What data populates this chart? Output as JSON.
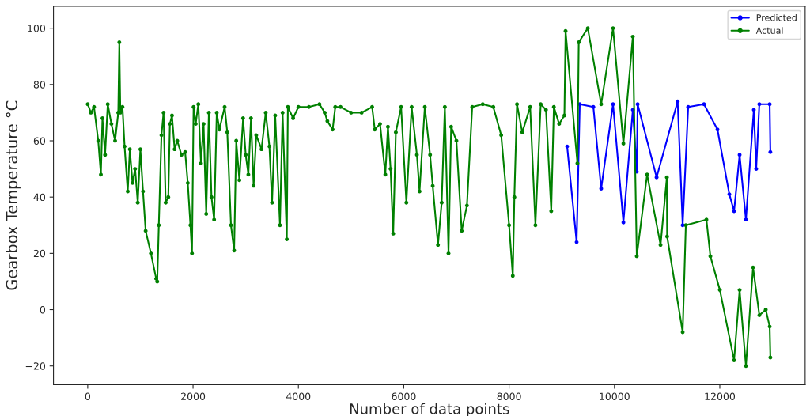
{
  "chart_data": {
    "type": "line",
    "xlabel": "Number of data points",
    "ylabel": "Gearbox Temperature °C",
    "xlim": [
      -650,
      13620
    ],
    "ylim": [
      -26.7,
      107.8
    ],
    "xticks": [
      0,
      2000,
      4000,
      6000,
      8000,
      10000,
      12000
    ],
    "yticks": [
      -20,
      0,
      20,
      40,
      60,
      80,
      100
    ],
    "grid": false,
    "legend": "top right",
    "marker": "circle",
    "line_style": "solid",
    "series": [
      {
        "name": "Predicted",
        "color": "#0000ff",
        "x": [
          9102,
          9282,
          9342,
          9600,
          9748,
          9973,
          10170,
          10349,
          10424,
          10440,
          10800,
          11200,
          11295,
          11400,
          11700,
          11956,
          12181,
          12271,
          12376,
          12496,
          12646,
          12691,
          12750,
          12947,
          12960
        ],
        "values": [
          58,
          24,
          73,
          72,
          43,
          73,
          31,
          71,
          49,
          73,
          47,
          74,
          30,
          72,
          73,
          64,
          41,
          35,
          55,
          32,
          71,
          50,
          73,
          73,
          56
        ]
      },
      {
        "name": "Actual",
        "color": "#008000",
        "x": [
          0,
          60,
          120,
          200,
          250,
          280,
          330,
          380,
          450,
          520,
          580,
          600,
          620,
          660,
          700,
          760,
          800,
          850,
          900,
          950,
          1000,
          1050,
          1100,
          1200,
          1300,
          1320,
          1350,
          1400,
          1440,
          1480,
          1530,
          1560,
          1600,
          1650,
          1700,
          1780,
          1850,
          1900,
          1950,
          1980,
          2010,
          2050,
          2100,
          2150,
          2200,
          2250,
          2300,
          2350,
          2400,
          2450,
          2500,
          2600,
          2650,
          2720,
          2780,
          2820,
          2880,
          2950,
          3000,
          3050,
          3100,
          3150,
          3200,
          3300,
          3380,
          3450,
          3500,
          3560,
          3650,
          3700,
          3780,
          3800,
          3900,
          4000,
          4200,
          4400,
          4500,
          4550,
          4650,
          4700,
          4800,
          5000,
          5200,
          5400,
          5450,
          5550,
          5650,
          5700,
          5750,
          5800,
          5850,
          5950,
          6050,
          6150,
          6250,
          6300,
          6400,
          6500,
          6550,
          6650,
          6720,
          6780,
          6850,
          6900,
          7000,
          7100,
          7200,
          7300,
          7500,
          7700,
          7850,
          8000,
          8070,
          8100,
          8150,
          8250,
          8400,
          8500,
          8600,
          8700,
          8800,
          8850,
          8950,
          9050,
          9072,
          9297,
          9322,
          9494,
          9748,
          9973,
          10170,
          10349,
          10424,
          10620,
          10875,
          10995,
          11000,
          11295,
          11355,
          11746,
          11821,
          12001,
          12271,
          12376,
          12496,
          12631,
          12751,
          12872,
          12947,
          12960
        ],
        "values": [
          73,
          70,
          72,
          60,
          48,
          68,
          55,
          73,
          66,
          60,
          70,
          95,
          70,
          72,
          58,
          42,
          57,
          45,
          50,
          38,
          57,
          42,
          28,
          20,
          11,
          10,
          30,
          62,
          70,
          38,
          40,
          66,
          69,
          57,
          60,
          55,
          56,
          45,
          30,
          20,
          72,
          66,
          73,
          52,
          66,
          34,
          70,
          40,
          32,
          70,
          64,
          72,
          63,
          30,
          21,
          60,
          46,
          68,
          55,
          48,
          68,
          44,
          62,
          57,
          70,
          58,
          38,
          69,
          30,
          70,
          25,
          72,
          68,
          72,
          72,
          73,
          70,
          67,
          64,
          72,
          72,
          70,
          70,
          72,
          64,
          66,
          48,
          65,
          50,
          27,
          63,
          72,
          38,
          72,
          55,
          42,
          72,
          55,
          44,
          23,
          38,
          72,
          20,
          65,
          60,
          28,
          37,
          72,
          73,
          72,
          62,
          30,
          12,
          40,
          73,
          63,
          72,
          30,
          73,
          71,
          35,
          72,
          66,
          69,
          99,
          52,
          95,
          100,
          73,
          100,
          59,
          97,
          19,
          48,
          23,
          47,
          26,
          -8,
          30,
          32,
          19,
          7,
          -18,
          7,
          -20,
          15,
          -2,
          0,
          -6,
          -17
        ]
      }
    ]
  }
}
